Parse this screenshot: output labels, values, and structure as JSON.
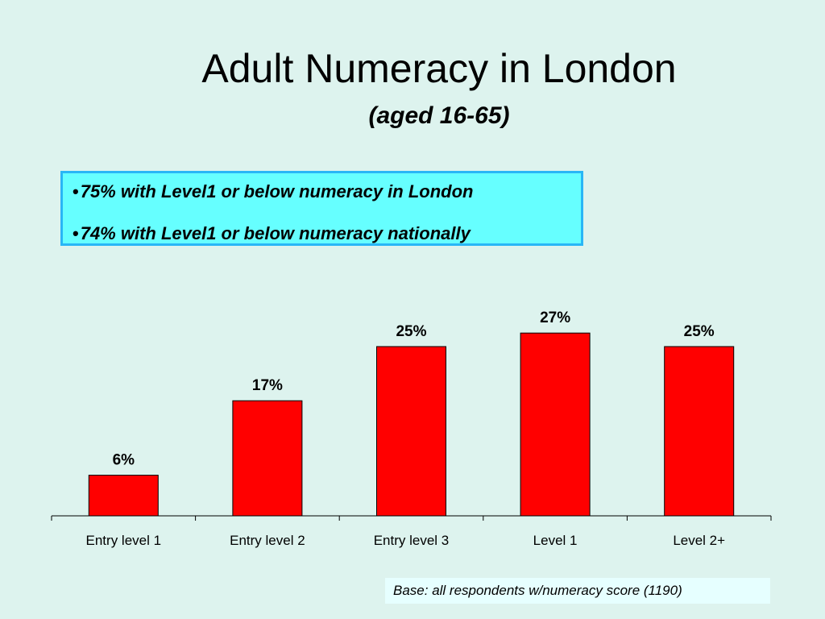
{
  "slide": {
    "title": "Adult Numeracy in London",
    "subtitle": "(aged 16-65)"
  },
  "callout": {
    "bullet": "•",
    "items": [
      "75% with Level1 or below numeracy in London",
      "74% with Level1 or below numeracy nationally"
    ]
  },
  "chart_data": {
    "type": "bar",
    "categories": [
      "Entry level 1",
      "Entry level 2",
      "Entry level 3",
      "Level 1",
      "Level 2+"
    ],
    "values": [
      6,
      17,
      25,
      27,
      25
    ],
    "data_labels": [
      "6%",
      "17%",
      "25%",
      "27%",
      "25%"
    ],
    "ylim": [
      0,
      30
    ],
    "grid": false,
    "legend": "none",
    "bar_color": "#ff0000"
  },
  "footnote": "Base: all respondents w/numeracy score (1190)"
}
